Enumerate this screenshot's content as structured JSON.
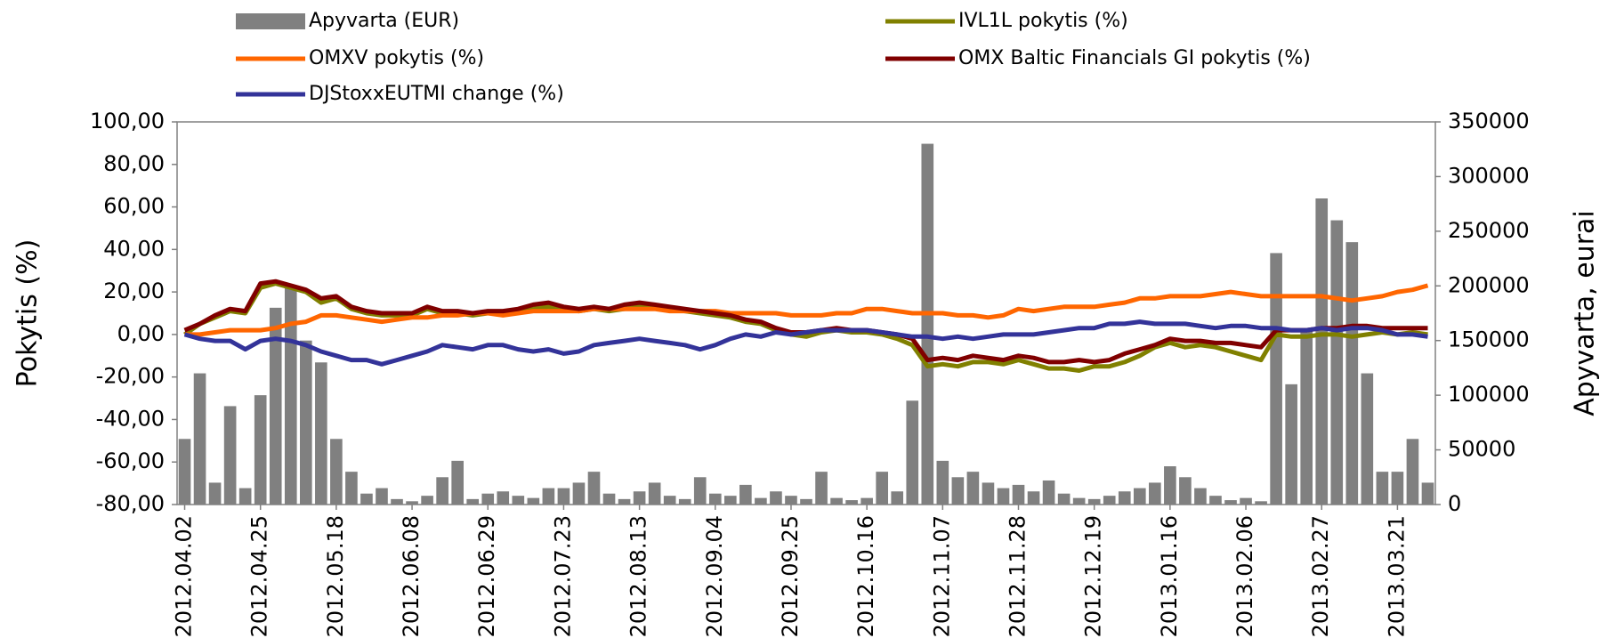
{
  "chart_data": {
    "type": "combo",
    "grid": false,
    "legend": "top",
    "y_label": "Pokytis (%)",
    "y2_label": "Apyvarta, eurai",
    "ylim": [
      -80,
      100
    ],
    "yticks": [
      {
        "value": -80,
        "label": "-80,00"
      },
      {
        "value": -60,
        "label": "-60,00"
      },
      {
        "value": -40,
        "label": "-40,00"
      },
      {
        "value": -20,
        "label": "-20,00"
      },
      {
        "value": 0,
        "label": "0,00"
      },
      {
        "value": 20,
        "label": "20,00"
      },
      {
        "value": 40,
        "label": "40,00"
      },
      {
        "value": 60,
        "label": "60,00"
      },
      {
        "value": 80,
        "label": "80,00"
      },
      {
        "value": 100,
        "label": "100,00"
      }
    ],
    "y2lim": [
      0,
      350000
    ],
    "y2ticks": [
      0,
      50000,
      100000,
      150000,
      200000,
      250000,
      300000,
      350000
    ],
    "categories": [
      "2012.04.02",
      null,
      null,
      null,
      null,
      "2012.04.25",
      null,
      null,
      null,
      null,
      "2012.05.18",
      null,
      null,
      null,
      null,
      "2012.06.08",
      null,
      null,
      null,
      null,
      "2012.06.29",
      null,
      null,
      null,
      null,
      "2012.07.23",
      null,
      null,
      null,
      null,
      "2012.08.13",
      null,
      null,
      null,
      null,
      "2012.09.04",
      null,
      null,
      null,
      null,
      "2012.09.25",
      null,
      null,
      null,
      null,
      "2012.10.16",
      null,
      null,
      null,
      null,
      "2012.11.07",
      null,
      null,
      null,
      null,
      "2012.11.28",
      null,
      null,
      null,
      null,
      "2012.12.19",
      null,
      null,
      null,
      null,
      "2013.01.16",
      null,
      null,
      null,
      null,
      "2013.02.06",
      null,
      null,
      null,
      null,
      "2013.02.27",
      null,
      null,
      null,
      null,
      "2013.03.21",
      null,
      null
    ],
    "series": [
      {
        "name": "Apyvarta (EUR)",
        "type": "bar",
        "axis": "y2",
        "color": "#808080",
        "values": [
          60000,
          120000,
          20000,
          90000,
          15000,
          100000,
          180000,
          200000,
          150000,
          130000,
          60000,
          30000,
          10000,
          15000,
          5000,
          3000,
          8000,
          25000,
          40000,
          5000,
          10000,
          12000,
          8000,
          6000,
          15000,
          15000,
          20000,
          30000,
          10000,
          5000,
          12000,
          20000,
          8000,
          5000,
          25000,
          10000,
          8000,
          18000,
          6000,
          12000,
          8000,
          5000,
          30000,
          6000,
          4000,
          6000,
          30000,
          12000,
          95000,
          330000,
          40000,
          25000,
          30000,
          20000,
          15000,
          18000,
          12000,
          22000,
          10000,
          6000,
          5000,
          8000,
          12000,
          15000,
          20000,
          35000,
          25000,
          15000,
          8000,
          4000,
          6000,
          3000,
          230000,
          110000,
          160000,
          280000,
          260000,
          240000,
          120000,
          30000,
          30000,
          60000,
          20000
        ]
      },
      {
        "name": "IVL1L pokytis (%)",
        "type": "line",
        "color": "#808000",
        "values": [
          0,
          5,
          8,
          11,
          10,
          22,
          24,
          22,
          20,
          15,
          17,
          12,
          10,
          9,
          9,
          9,
          12,
          10,
          10,
          9,
          10,
          10,
          11,
          12,
          13,
          12,
          11,
          12,
          11,
          12,
          13,
          13,
          12,
          11,
          10,
          9,
          8,
          6,
          5,
          2,
          0,
          -1,
          1,
          2,
          1,
          1,
          0,
          -2,
          -5,
          -15,
          -14,
          -15,
          -13,
          -13,
          -14,
          -12,
          -14,
          -16,
          -16,
          -17,
          -15,
          -15,
          -13,
          -10,
          -6,
          -4,
          -6,
          -5,
          -6,
          -8,
          -10,
          -12,
          0,
          -1,
          -1,
          0,
          0,
          -1,
          0,
          1,
          0,
          1,
          0
        ]
      },
      {
        "name": "OMXV pokytis (%)",
        "type": "line",
        "color": "#ff6600",
        "values": [
          0,
          0,
          1,
          2,
          2,
          2,
          3,
          5,
          6,
          9,
          9,
          8,
          7,
          6,
          7,
          8,
          8,
          9,
          9,
          10,
          10,
          9,
          10,
          11,
          11,
          11,
          11,
          12,
          12,
          12,
          12,
          12,
          11,
          11,
          11,
          11,
          10,
          10,
          10,
          10,
          9,
          9,
          9,
          10,
          10,
          12,
          12,
          11,
          10,
          10,
          10,
          9,
          9,
          8,
          9,
          12,
          11,
          12,
          13,
          13,
          13,
          14,
          15,
          17,
          17,
          18,
          18,
          18,
          19,
          20,
          19,
          18,
          18,
          18,
          18,
          18,
          17,
          16,
          17,
          18,
          20,
          21,
          23
        ]
      },
      {
        "name": "OMX Baltic Financials GI pokytis (%)",
        "type": "line",
        "color": "#800000",
        "values": [
          2,
          5,
          9,
          12,
          11,
          24,
          25,
          23,
          21,
          17,
          18,
          13,
          11,
          10,
          10,
          10,
          13,
          11,
          11,
          10,
          11,
          11,
          12,
          14,
          15,
          13,
          12,
          13,
          12,
          14,
          15,
          14,
          13,
          12,
          11,
          10,
          9,
          7,
          6,
          3,
          1,
          1,
          2,
          3,
          2,
          2,
          1,
          0,
          -2,
          -12,
          -11,
          -12,
          -10,
          -11,
          -12,
          -10,
          -11,
          -13,
          -13,
          -12,
          -13,
          -12,
          -9,
          -7,
          -5,
          -2,
          -3,
          -3,
          -4,
          -4,
          -5,
          -6,
          2,
          2,
          2,
          3,
          3,
          4,
          4,
          3,
          3,
          3,
          3
        ]
      },
      {
        "name": "DJStoxxEUTMI change (%)",
        "type": "line",
        "color": "#333399",
        "values": [
          0,
          -2,
          -3,
          -3,
          -7,
          -3,
          -2,
          -3,
          -5,
          -8,
          -10,
          -12,
          -12,
          -14,
          -12,
          -10,
          -8,
          -5,
          -6,
          -7,
          -5,
          -5,
          -7,
          -8,
          -7,
          -9,
          -8,
          -5,
          -4,
          -3,
          -2,
          -3,
          -4,
          -5,
          -7,
          -5,
          -2,
          0,
          -1,
          1,
          0,
          1,
          2,
          2,
          2,
          2,
          1,
          0,
          -1,
          -1,
          -2,
          -1,
          -2,
          -1,
          0,
          0,
          0,
          1,
          2,
          3,
          3,
          5,
          5,
          6,
          5,
          5,
          5,
          4,
          3,
          4,
          4,
          3,
          3,
          2,
          2,
          3,
          2,
          3,
          3,
          2,
          0,
          0,
          -1
        ]
      }
    ]
  }
}
